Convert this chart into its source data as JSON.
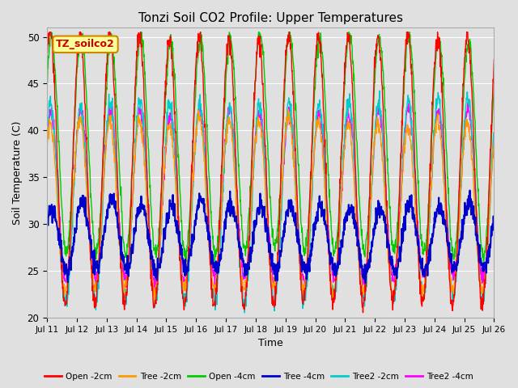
{
  "title": "Tonzi Soil CO2 Profile: Upper Temperatures",
  "xlabel": "Time",
  "ylabel": "Soil Temperature (C)",
  "ylim": [
    20,
    51
  ],
  "bg_color": "#e0e0e0",
  "grid_color": "#ffffff",
  "annotation_text": "TZ_soilco2",
  "annotation_bg": "#ffff99",
  "annotation_border": "#cc8800",
  "legend_entries": [
    "Open -2cm",
    "Tree -2cm",
    "Open -4cm",
    "Tree -4cm",
    "Tree2 -2cm",
    "Tree2 -4cm"
  ],
  "legend_colors": [
    "#ff0000",
    "#ff9900",
    "#00cc00",
    "#0000cc",
    "#00cccc",
    "#ff00ff"
  ],
  "x_tick_labels": [
    "Jul 11",
    "Jul 12",
    "Jul 13",
    "Jul 14",
    "Jul 15",
    "Jul 16",
    "Jul 17",
    "Jul 18",
    "Jul 19",
    "Jul 20",
    "Jul 21",
    "Jul 22",
    "Jul 23",
    "Jul 24",
    "Jul 25",
    "Jul 26"
  ],
  "yticks": [
    20,
    25,
    30,
    35,
    40,
    45,
    50
  ]
}
